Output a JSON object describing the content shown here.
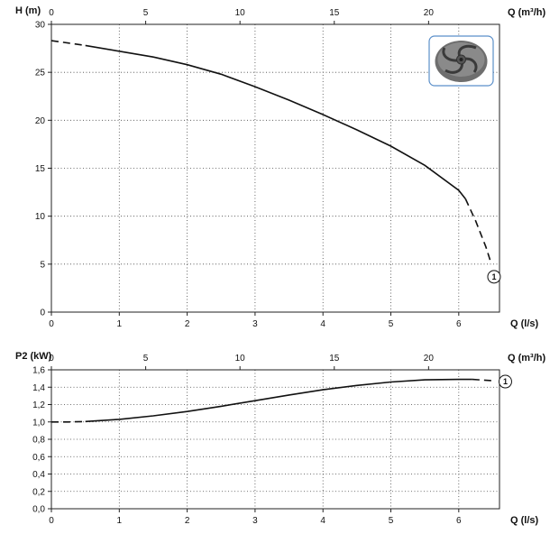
{
  "chart_data": [
    {
      "type": "line",
      "title": "",
      "ylabel": "H (m)",
      "xlabel": "Q (l/s)",
      "x2label": "Q (m³/h)",
      "xlim": [
        0,
        6.6
      ],
      "ylim": [
        0,
        30
      ],
      "x2lim": [
        0,
        23.76
      ],
      "x_ticks": [
        "0",
        "1",
        "2",
        "3",
        "4",
        "5",
        "6"
      ],
      "y_ticks": [
        "0",
        "5",
        "10",
        "15",
        "20",
        "25",
        "30"
      ],
      "x2_ticks": [
        "0",
        "5",
        "10",
        "15",
        "20"
      ],
      "grid": true,
      "series": [
        {
          "values": [
            [
              0,
              28.3
            ],
            [
              0.25,
              28.05
            ],
            [
              0.5,
              27.8
            ],
            [
              1.0,
              27.2
            ],
            [
              1.5,
              26.6
            ],
            [
              2.0,
              25.8
            ],
            [
              2.5,
              24.8
            ],
            [
              3.0,
              23.5
            ],
            [
              3.5,
              22.1
            ],
            [
              4.0,
              20.6
            ],
            [
              4.5,
              19.0
            ],
            [
              5.0,
              17.3
            ],
            [
              5.5,
              15.3
            ],
            [
              6.0,
              12.7
            ],
            [
              6.1,
              11.8
            ],
            [
              6.25,
              9.5
            ],
            [
              6.4,
              6.8
            ],
            [
              6.48,
              5.0
            ]
          ],
          "solid_range": [
            0.5,
            6.1
          ],
          "marker_label": "1"
        }
      ],
      "image": "impeller-photo"
    },
    {
      "type": "line",
      "title": "",
      "ylabel": "P2 (kW)",
      "xlabel": "Q (l/s)",
      "x2label": "Q (m³/h)",
      "xlim": [
        0,
        6.6
      ],
      "ylim": [
        0,
        1.6
      ],
      "x2lim": [
        0,
        23.76
      ],
      "x_ticks": [
        "0",
        "1",
        "2",
        "3",
        "4",
        "5",
        "6"
      ],
      "y_ticks": [
        "0,0",
        "0,2",
        "0,4",
        "0,6",
        "0,8",
        "1,0",
        "1,2",
        "1,4",
        "1,6"
      ],
      "x2_ticks": [
        "0",
        "5",
        "10",
        "15",
        "20"
      ],
      "grid": true,
      "series": [
        {
          "values": [
            [
              0,
              1.0
            ],
            [
              0.25,
              1.0
            ],
            [
              0.5,
              1.005
            ],
            [
              1.0,
              1.03
            ],
            [
              1.5,
              1.07
            ],
            [
              2.0,
              1.12
            ],
            [
              2.5,
              1.18
            ],
            [
              3.0,
              1.245
            ],
            [
              3.5,
              1.31
            ],
            [
              4.0,
              1.37
            ],
            [
              4.5,
              1.42
            ],
            [
              5.0,
              1.46
            ],
            [
              5.5,
              1.485
            ],
            [
              6.0,
              1.49
            ],
            [
              6.2,
              1.49
            ],
            [
              6.4,
              1.48
            ],
            [
              6.5,
              1.475
            ]
          ],
          "solid_range": [
            0.5,
            6.2
          ],
          "marker_label": "1"
        }
      ]
    }
  ]
}
